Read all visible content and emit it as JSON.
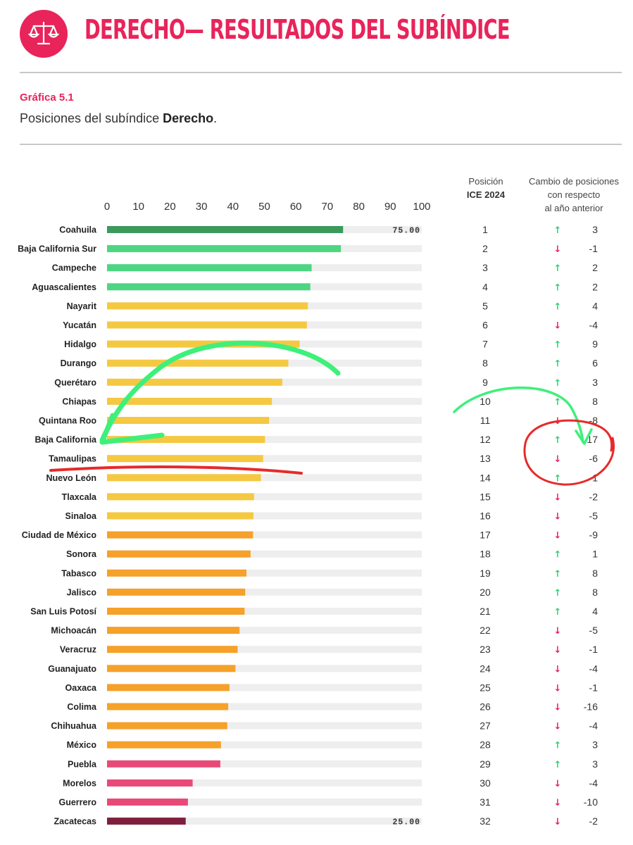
{
  "header": {
    "title": "DERECHO— RESULTADOS DEL SUBÍNDICE",
    "icon": "scales-of-justice-icon",
    "brand_color": "#e8245a"
  },
  "figure": {
    "label": "Gráfica 5.1",
    "subtitle_prefix": "Posiciones del subíndice ",
    "subtitle_bold": "Derecho",
    "subtitle_suffix": "."
  },
  "columns": {
    "position_line1": "Posición",
    "position_line2": "ICE 2024",
    "change_line1": "Cambio de posiciones",
    "change_line2": "con respecto",
    "change_line3": "al año anterior"
  },
  "colors": {
    "top": "#3a9a5c",
    "green": "#4dd682",
    "yellow": "#f5c842",
    "orange": "#f5a12a",
    "pink": "#e84a78",
    "bottom": "#7f1f3e",
    "track": "#eeeeee",
    "up": "#2fd07a",
    "down": "#e8245a"
  },
  "chart_data": {
    "type": "bar",
    "orientation": "horizontal",
    "xlim": [
      0,
      100
    ],
    "xticks": [
      0,
      10,
      20,
      30,
      40,
      50,
      60,
      70,
      80,
      90,
      100
    ],
    "value_labels": [
      {
        "category": "Coahuila",
        "text": "75.00"
      },
      {
        "category": "Zacatecas",
        "text": "25.00"
      }
    ],
    "rows": [
      {
        "state": "Coahuila",
        "value": 75.0,
        "position": 1,
        "change": 3,
        "direction": "up",
        "color": "top"
      },
      {
        "state": "Baja California Sur",
        "value": 74.3,
        "position": 2,
        "change": -1,
        "direction": "down",
        "color": "green"
      },
      {
        "state": "Campeche",
        "value": 65.0,
        "position": 3,
        "change": 2,
        "direction": "up",
        "color": "green"
      },
      {
        "state": "Aguascalientes",
        "value": 64.6,
        "position": 4,
        "change": 2,
        "direction": "up",
        "color": "green"
      },
      {
        "state": "Nayarit",
        "value": 63.8,
        "position": 5,
        "change": 4,
        "direction": "up",
        "color": "yellow"
      },
      {
        "state": "Yucatán",
        "value": 63.5,
        "position": 6,
        "change": -4,
        "direction": "down",
        "color": "yellow"
      },
      {
        "state": "Hidalgo",
        "value": 61.2,
        "position": 7,
        "change": 9,
        "direction": "up",
        "color": "yellow"
      },
      {
        "state": "Durango",
        "value": 57.6,
        "position": 8,
        "change": 6,
        "direction": "up",
        "color": "yellow"
      },
      {
        "state": "Querétaro",
        "value": 55.7,
        "position": 9,
        "change": 3,
        "direction": "up",
        "color": "yellow"
      },
      {
        "state": "Chiapas",
        "value": 52.4,
        "position": 10,
        "change": 8,
        "direction": "up",
        "color": "yellow"
      },
      {
        "state": "Quintana Roo",
        "value": 51.5,
        "position": 11,
        "change": -8,
        "direction": "down",
        "color": "yellow"
      },
      {
        "state": "Baja California",
        "value": 50.2,
        "position": 12,
        "change": 17,
        "direction": "up",
        "color": "yellow"
      },
      {
        "state": "Tamaulipas",
        "value": 49.6,
        "position": 13,
        "change": -6,
        "direction": "down",
        "color": "yellow"
      },
      {
        "state": "Nuevo León",
        "value": 48.9,
        "position": 14,
        "change": 1,
        "direction": "up",
        "color": "yellow"
      },
      {
        "state": "Tlaxcala",
        "value": 46.7,
        "position": 15,
        "change": -2,
        "direction": "down",
        "color": "yellow"
      },
      {
        "state": "Sinaloa",
        "value": 46.5,
        "position": 16,
        "change": -5,
        "direction": "down",
        "color": "yellow"
      },
      {
        "state": "Ciudad de México",
        "value": 46.4,
        "position": 17,
        "change": -9,
        "direction": "down",
        "color": "orange"
      },
      {
        "state": "Sonora",
        "value": 45.6,
        "position": 18,
        "change": 1,
        "direction": "up",
        "color": "orange"
      },
      {
        "state": "Tabasco",
        "value": 44.3,
        "position": 19,
        "change": 8,
        "direction": "up",
        "color": "orange"
      },
      {
        "state": "Jalisco",
        "value": 43.9,
        "position": 20,
        "change": 8,
        "direction": "up",
        "color": "orange"
      },
      {
        "state": "San Luis Potosí",
        "value": 43.7,
        "position": 21,
        "change": 4,
        "direction": "up",
        "color": "orange"
      },
      {
        "state": "Michoacán",
        "value": 42.1,
        "position": 22,
        "change": -5,
        "direction": "down",
        "color": "orange"
      },
      {
        "state": "Veracruz",
        "value": 41.5,
        "position": 23,
        "change": -1,
        "direction": "down",
        "color": "orange"
      },
      {
        "state": "Guanajuato",
        "value": 40.8,
        "position": 24,
        "change": -4,
        "direction": "down",
        "color": "orange"
      },
      {
        "state": "Oaxaca",
        "value": 38.9,
        "position": 25,
        "change": -1,
        "direction": "down",
        "color": "orange"
      },
      {
        "state": "Colima",
        "value": 38.5,
        "position": 26,
        "change": -16,
        "direction": "down",
        "color": "orange"
      },
      {
        "state": "Chihuahua",
        "value": 38.2,
        "position": 27,
        "change": -4,
        "direction": "down",
        "color": "orange"
      },
      {
        "state": "México",
        "value": 36.2,
        "position": 28,
        "change": 3,
        "direction": "up",
        "color": "orange"
      },
      {
        "state": "Puebla",
        "value": 36.0,
        "position": 29,
        "change": 3,
        "direction": "up",
        "color": "pink"
      },
      {
        "state": "Morelos",
        "value": 27.2,
        "position": 30,
        "change": -4,
        "direction": "down",
        "color": "pink"
      },
      {
        "state": "Guerrero",
        "value": 25.7,
        "position": 31,
        "change": -10,
        "direction": "down",
        "color": "pink"
      },
      {
        "state": "Zacatecas",
        "value": 25.0,
        "position": 32,
        "change": -2,
        "direction": "down",
        "color": "bottom"
      }
    ]
  }
}
